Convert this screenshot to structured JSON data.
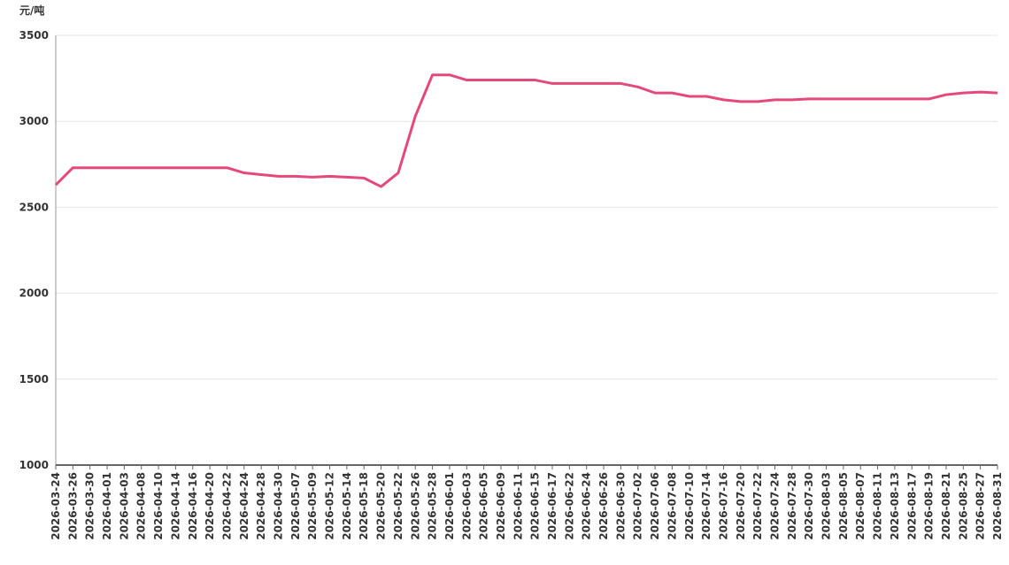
{
  "chart_data": {
    "type": "line",
    "y_axis_label": "元/吨",
    "categories": [
      "2026-03-24",
      "2026-03-26",
      "2026-03-30",
      "2026-04-01",
      "2026-04-03",
      "2026-04-08",
      "2026-04-10",
      "2026-04-14",
      "2026-04-16",
      "2026-04-20",
      "2026-04-22",
      "2026-04-24",
      "2026-04-28",
      "2026-04-30",
      "2026-05-07",
      "2026-05-09",
      "2026-05-12",
      "2026-05-14",
      "2026-05-18",
      "2026-05-20",
      "2026-05-22",
      "2026-05-26",
      "2026-05-28",
      "2026-06-01",
      "2026-06-03",
      "2026-06-05",
      "2026-06-09",
      "2026-06-11",
      "2026-06-15",
      "2026-06-17",
      "2026-06-22",
      "2026-06-24",
      "2026-06-26",
      "2026-06-30",
      "2026-07-02",
      "2026-07-06",
      "2026-07-08",
      "2026-07-10",
      "2026-07-14",
      "2026-07-16",
      "2026-07-20",
      "2026-07-22",
      "2026-07-24",
      "2026-07-28",
      "2026-07-30",
      "2026-08-03",
      "2026-08-05",
      "2026-08-07",
      "2026-08-11",
      "2026-08-13",
      "2026-08-17",
      "2026-08-19",
      "2026-08-21",
      "2026-08-25",
      "2026-08-27",
      "2026-08-31"
    ],
    "values": [
      2630,
      2730,
      2730,
      2730,
      2730,
      2730,
      2730,
      2730,
      2730,
      2730,
      2730,
      2700,
      2690,
      2680,
      2680,
      2675,
      2680,
      2675,
      2670,
      2620,
      2700,
      3030,
      3270,
      3270,
      3240,
      3240,
      3240,
      3240,
      3240,
      3220,
      3220,
      3220,
      3220,
      3220,
      3200,
      3165,
      3165,
      3145,
      3145,
      3125,
      3115,
      3115,
      3125,
      3125,
      3130,
      3130,
      3130,
      3130,
      3130,
      3130,
      3130,
      3130,
      3155,
      3165,
      3170,
      3165
    ],
    "color": "#e5497a",
    "ylim": [
      1000,
      3500
    ],
    "yticks": [
      1000,
      1500,
      2000,
      2500,
      3000,
      3500
    ],
    "grid": true
  }
}
